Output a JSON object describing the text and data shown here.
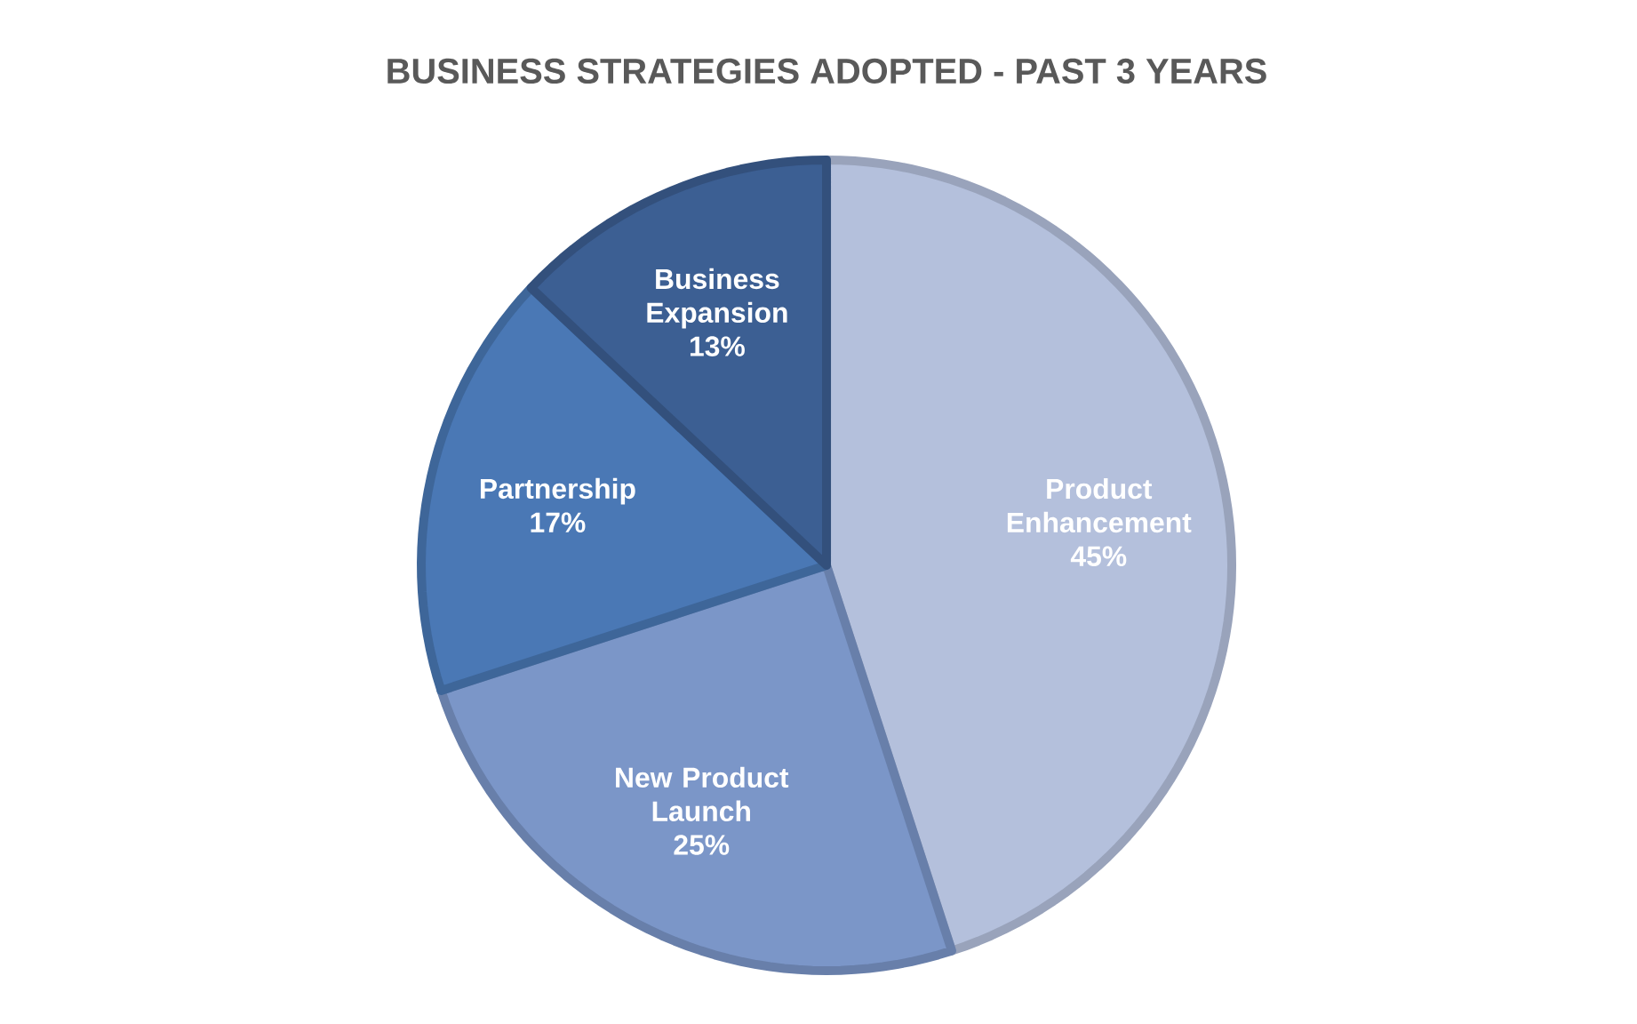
{
  "chart_data": {
    "type": "pie",
    "title": "BUSINESS STRATEGIES ADOPTED - PAST 3 YEARS",
    "categories": [
      "Product Enhancement",
      "New Product Launch",
      "Partnership",
      "Business Expansion"
    ],
    "values": [
      45,
      25,
      17,
      13
    ],
    "value_labels": [
      "45%",
      "25%",
      "17%",
      "13%"
    ],
    "colors": [
      "#b4c0dc",
      "#7b96c8",
      "#4a78b5",
      "#3c5f93"
    ]
  }
}
